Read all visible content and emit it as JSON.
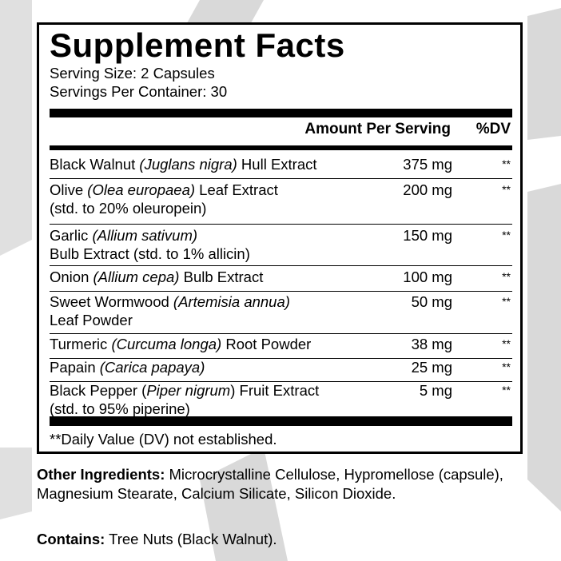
{
  "title": "Supplement Facts",
  "serving_size": "Serving Size: 2 Capsules",
  "servings_per_container": "Servings Per Container: 30",
  "header": {
    "amount": "Amount Per Serving",
    "dv": "%DV"
  },
  "rows": [
    {
      "name": "Black Walnut",
      "latin": "(Juglans nigra)",
      "rest": " Hull Extract",
      "line2": "",
      "amount": "375 mg",
      "dv": "**"
    },
    {
      "name": "Olive",
      "latin": "(Olea europaea)",
      "rest": " Leaf Extract",
      "line2": "(std. to 20% oleuropein)",
      "amount": "200 mg",
      "dv": "**"
    },
    {
      "name": "Garlic",
      "latin": "(Allium sativum)",
      "rest": "",
      "line2": "Bulb Extract (std. to 1% allicin)",
      "amount": "150 mg",
      "dv": "**"
    },
    {
      "name": "Onion",
      "latin": "(Allium cepa)",
      "rest": " Bulb Extract",
      "line2": "",
      "amount": "100 mg",
      "dv": "**"
    },
    {
      "name": "Sweet Wormwood",
      "latin": "(Artemisia annua)",
      "rest": "",
      "line2": "Leaf Powder",
      "amount": "50 mg",
      "dv": "**"
    },
    {
      "name": "Turmeric",
      "latin": "(Curcuma longa)",
      "rest": " Root Powder",
      "line2": "",
      "amount": "38 mg",
      "dv": "**"
    },
    {
      "name": "Papain",
      "latin": "(Carica papaya)",
      "rest": "",
      "line2": "",
      "amount": "25 mg",
      "dv": "**"
    },
    {
      "name": "Black Pepper (",
      "latin": "Piper nigrum",
      "rest": ") Fruit Extract",
      "line2": "(std. to 95% piperine)",
      "amount": "5 mg",
      "dv": "**"
    }
  ],
  "footnote": "**Daily Value (DV) not established.",
  "other_ingredients": {
    "label": "Other Ingredients:",
    "text": " Microcrystalline Cellulose, Hypromellose (capsule), Magnesium Stearate, Calcium Silicate, Silicon Dioxide."
  },
  "contains": {
    "label": "Contains:",
    "text": " Tree Nuts (Black Walnut)."
  },
  "colors": {
    "background_swoosh": "#d9d9d9",
    "text": "#000000"
  }
}
